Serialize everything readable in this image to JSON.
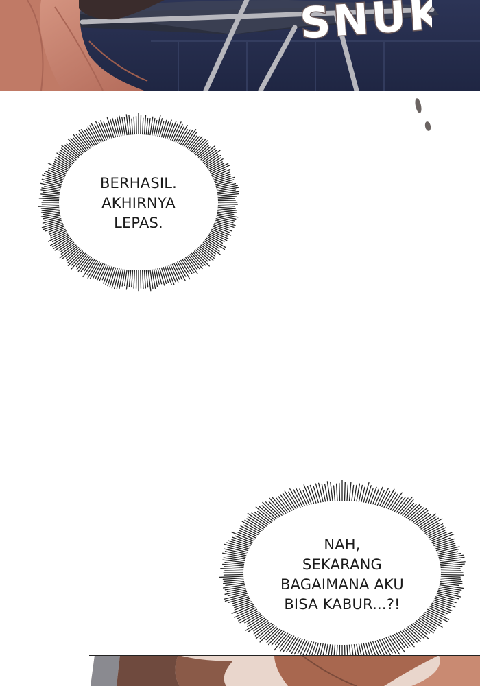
{
  "top_panel": {
    "sfx_text": "SNUK"
  },
  "bubble_1": {
    "lines": [
      "BERHASIL.",
      "AKHIRNYA",
      "LEPAS."
    ]
  },
  "bubble_2": {
    "lines": [
      "NAH,",
      "SEKARANG",
      "BAGAIMANA AKU",
      "BISA KABUR...?!"
    ]
  },
  "colors": {
    "skin": "#c9826e",
    "skin_shadow": "#9e5e4e",
    "night_blue": "#2a3150",
    "chair_frame": "#b8b8bc",
    "bubble_fill": "#ffffff",
    "bubble_spikes": "#222222",
    "hair": "#7a4a3a"
  }
}
